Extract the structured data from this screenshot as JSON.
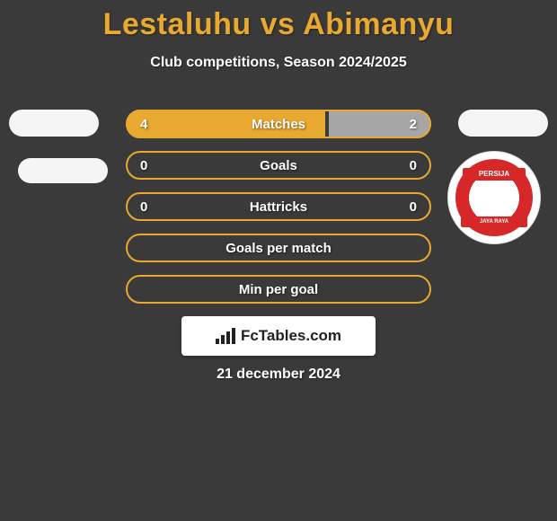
{
  "header": {
    "title": "Lestaluhu vs Abimanyu",
    "title_color": "#e9a82f",
    "subtitle": "Club competitions, Season 2024/2025"
  },
  "background_color": "#3a3a3a",
  "rows": [
    {
      "label": "Matches",
      "left_value": "4",
      "right_value": "2",
      "border_color": "#e9a82f",
      "left_fill_width_pct": 66,
      "left_fill_color": "#e9a82f",
      "right_fill_width_pct": 34,
      "right_fill_color": "#a6a6a6"
    },
    {
      "label": "Goals",
      "left_value": "0",
      "right_value": "0",
      "border_color": "#e9a82f",
      "left_fill_width_pct": 0,
      "left_fill_color": "#e9a82f",
      "right_fill_width_pct": 0,
      "right_fill_color": "#a6a6a6"
    },
    {
      "label": "Hattricks",
      "left_value": "0",
      "right_value": "0",
      "border_color": "#e9a82f",
      "left_fill_width_pct": 0,
      "left_fill_color": "#e9a82f",
      "right_fill_width_pct": 0,
      "right_fill_color": "#a6a6a6"
    },
    {
      "label": "Goals per match",
      "left_value": "",
      "right_value": "",
      "border_color": "#e9a82f",
      "left_fill_width_pct": 0,
      "left_fill_color": "#e9a82f",
      "right_fill_width_pct": 0,
      "right_fill_color": "#a6a6a6"
    },
    {
      "label": "Min per goal",
      "left_value": "",
      "right_value": "",
      "border_color": "#e9a82f",
      "left_fill_width_pct": 0,
      "left_fill_color": "#e9a82f",
      "right_fill_width_pct": 0,
      "right_fill_color": "#a6a6a6"
    }
  ],
  "club_badge": {
    "top_text": "PERSIJA",
    "bottom_text": "JAYA RAYA",
    "primary_color": "#d62828"
  },
  "footer": {
    "brand": "FcTables.com",
    "date": "21 december 2024"
  }
}
